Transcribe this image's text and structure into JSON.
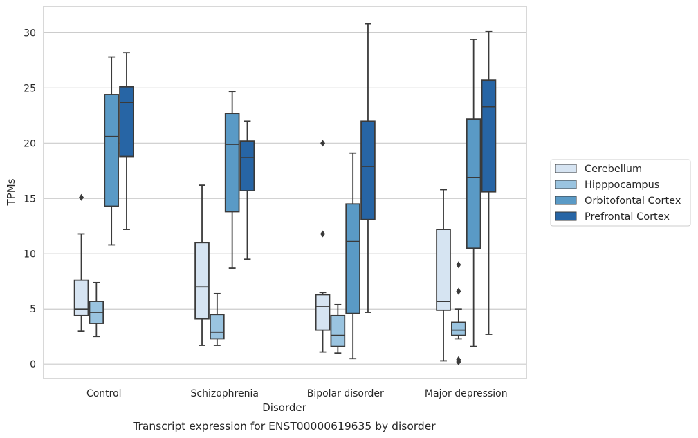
{
  "caption": "Transcript expression for ENST00000619635 by disorder",
  "chart_data": {
    "type": "boxplot",
    "xlabel": "Disorder",
    "ylabel": "TPMs",
    "ylim": [
      -1.3,
      32.4
    ],
    "yticks": [
      0,
      5,
      10,
      15,
      20,
      25,
      30
    ],
    "grid": "horizontal",
    "legend_position": "right",
    "categories": [
      "Control",
      "Schizophrenia",
      "Bipolar disorder",
      "Major depression"
    ],
    "series": [
      {
        "name": "Cerebellum",
        "color": "#d6e4f2",
        "boxes": [
          {
            "whislo": 3.0,
            "q1": 4.4,
            "med": 5.0,
            "q3": 7.6,
            "whishi": 11.8,
            "fliers": [
              15.1
            ]
          },
          {
            "whislo": 1.7,
            "q1": 4.1,
            "med": 7.0,
            "q3": 11.0,
            "whishi": 16.2,
            "fliers": []
          },
          {
            "whislo": 1.1,
            "q1": 3.1,
            "med": 5.2,
            "q3": 6.3,
            "whishi": 6.5,
            "fliers": [
              11.8,
              20.0
            ]
          },
          {
            "whislo": 0.3,
            "q1": 4.9,
            "med": 5.7,
            "q3": 12.2,
            "whishi": 15.8,
            "fliers": []
          }
        ]
      },
      {
        "name": "Hipppocampus",
        "color": "#9ac4e0",
        "boxes": [
          {
            "whislo": 2.5,
            "q1": 3.7,
            "med": 4.7,
            "q3": 5.7,
            "whishi": 7.4,
            "fliers": []
          },
          {
            "whislo": 1.7,
            "q1": 2.3,
            "med": 2.9,
            "q3": 4.5,
            "whishi": 6.4,
            "fliers": []
          },
          {
            "whislo": 1.0,
            "q1": 1.6,
            "med": 2.6,
            "q3": 4.4,
            "whishi": 5.4,
            "fliers": []
          },
          {
            "whislo": 2.3,
            "q1": 2.6,
            "med": 3.1,
            "q3": 3.8,
            "whishi": 5.0,
            "fliers": [
              0.2,
              0.4,
              6.6,
              9.0
            ]
          }
        ]
      },
      {
        "name": "Orbitofontal Cortex",
        "color": "#5a9ac6",
        "boxes": [
          {
            "whislo": 10.8,
            "q1": 14.3,
            "med": 20.6,
            "q3": 24.4,
            "whishi": 27.8,
            "fliers": []
          },
          {
            "whislo": 8.7,
            "q1": 13.8,
            "med": 19.9,
            "q3": 22.7,
            "whishi": 24.7,
            "fliers": []
          },
          {
            "whislo": 0.5,
            "q1": 4.6,
            "med": 11.1,
            "q3": 14.5,
            "whishi": 19.1,
            "fliers": []
          },
          {
            "whislo": 1.6,
            "q1": 10.5,
            "med": 16.9,
            "q3": 22.2,
            "whishi": 29.4,
            "fliers": []
          }
        ]
      },
      {
        "name": "Prefrontal Cortex",
        "color": "#2765a5",
        "boxes": [
          {
            "whislo": 12.2,
            "q1": 18.8,
            "med": 23.7,
            "q3": 25.1,
            "whishi": 28.2,
            "fliers": []
          },
          {
            "whislo": 9.5,
            "q1": 15.7,
            "med": 18.7,
            "q3": 20.2,
            "whishi": 22.0,
            "fliers": []
          },
          {
            "whislo": 4.7,
            "q1": 13.1,
            "med": 17.9,
            "q3": 22.0,
            "whishi": 30.8,
            "fliers": []
          },
          {
            "whislo": 2.7,
            "q1": 15.6,
            "med": 23.3,
            "q3": 25.7,
            "whishi": 30.1,
            "fliers": []
          }
        ]
      }
    ]
  }
}
